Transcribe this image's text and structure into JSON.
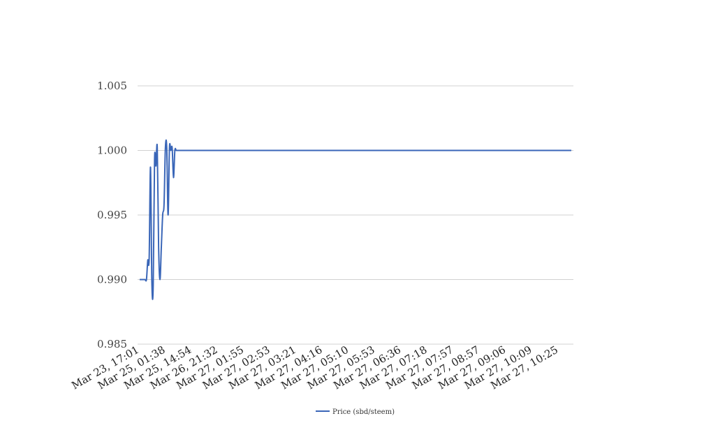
{
  "chart_data": {
    "type": "line",
    "title": "",
    "xlabel": "",
    "ylabel": "",
    "ylim": [
      0.985,
      1.005
    ],
    "yticks": [
      "0.985",
      "0.990",
      "0.995",
      "1.000",
      "1.005"
    ],
    "grid": true,
    "legend_position": "bottom",
    "x_tick_labels": [
      "Mar 23, 17:01",
      "Mar 25, 01:38",
      "Mar 25, 14:54",
      "Mar 26, 21:32",
      "Mar 27, 01:55",
      "Mar 27, 02:53",
      "Mar 27, 03:21",
      "Mar 27, 04:16",
      "Mar 27, 05:10",
      "Mar 27, 05:53",
      "Mar 27, 06:36",
      "Mar 27, 07:18",
      "Mar 27, 07:57",
      "Mar 27, 08:57",
      "Mar 27, 09:06",
      "Mar 27, 10:09",
      "Mar 27, 10:25"
    ],
    "series": [
      {
        "name": "Price (sbd/steem)",
        "color": "#3a66b8",
        "values": [
          0.99,
          0.99,
          0.99,
          0.99,
          0.99,
          0.99,
          0.9915,
          0.9916,
          0.9987,
          0.9898,
          0.9895,
          0.9993,
          0.9988,
          1.0002,
          0.9925,
          0.99,
          0.9925,
          0.995,
          0.9958,
          1.0002,
          1.0002,
          0.995,
          1.0002,
          1.0,
          1.0002,
          0.9979,
          1.0,
          1.0,
          1.0,
          1.0,
          1.0,
          1.0,
          1.0,
          1.0,
          1.0,
          1.0,
          1.0,
          1.0,
          1.0,
          1.0,
          1.0,
          1.0,
          1.0,
          1.0,
          1.0,
          1.0,
          1.0,
          1.0,
          1.0,
          1.0,
          1.0,
          1.0,
          1.0,
          1.0,
          1.0,
          1.0,
          1.0,
          1.0,
          1.0,
          1.0,
          1.0,
          1.0,
          1.0,
          1.0,
          1.0,
          1.0,
          1.0,
          1.0,
          1.0,
          1.0,
          1.0,
          1.0,
          1.0,
          1.0,
          1.0,
          1.0,
          1.0,
          1.0,
          1.0,
          1.0,
          1.0,
          1.0,
          1.0,
          1.0,
          1.0,
          1.0,
          1.0,
          1.0,
          1.0,
          1.0,
          1.0,
          1.0,
          1.0,
          1.0,
          1.0,
          1.0,
          1.0,
          1.0,
          1.0,
          1.0,
          1.0,
          1.0,
          1.0,
          1.0,
          1.0,
          1.0,
          1.0,
          1.0,
          1.0,
          1.0,
          1.0,
          1.0,
          1.0,
          1.0,
          1.0,
          1.0,
          1.0,
          1.0,
          1.0,
          1.0,
          1.0,
          1.0,
          1.0,
          1.0,
          1.0,
          1.0,
          1.0,
          1.0,
          1.0,
          1.0,
          1.0,
          1.0,
          1.0,
          1.0,
          1.0,
          1.0,
          1.0,
          1.0,
          1.0,
          1.0,
          1.0,
          1.0,
          1.0,
          1.0,
          1.0,
          1.0,
          1.0,
          1.0,
          1.0,
          1.0,
          1.0,
          1.0,
          1.0,
          1.0,
          1.0,
          1.0,
          1.0,
          1.0,
          1.0,
          1.0,
          1.0,
          1.0,
          1.0,
          1.0,
          1.0,
          1.0,
          1.0,
          1.0,
          1.0,
          1.0,
          1.0,
          1.0,
          1.0,
          1.0,
          1.0,
          1.0,
          1.0,
          1.0,
          1.0,
          1.0,
          1.0,
          1.0,
          1.0,
          1.0,
          1.0,
          1.0,
          1.0,
          1.0,
          1.0,
          1.0,
          1.0,
          1.0,
          1.0,
          1.0,
          1.0,
          1.0,
          1.0,
          1.0,
          1.0,
          1.0,
          1.0,
          1.0,
          1.0,
          1.0,
          1.0,
          1.0,
          1.0,
          1.0,
          1.0,
          1.0,
          1.0,
          1.0,
          1.0,
          1.0,
          1.0,
          1.0,
          1.0,
          1.0,
          1.0,
          1.0,
          1.0,
          1.0,
          1.0,
          1.0,
          1.0,
          1.0,
          1.0,
          1.0,
          1.0,
          1.0,
          1.0,
          1.0,
          1.0,
          1.0,
          1.0,
          1.0,
          1.0,
          1.0,
          1.0,
          1.0,
          1.0,
          1.0,
          1.0,
          1.0,
          1.0,
          1.0,
          1.0,
          1.0,
          1.0,
          1.0,
          1.0,
          1.0,
          1.0,
          1.0,
          1.0,
          1.0,
          1.0,
          1.0,
          1.0,
          1.0,
          1.0,
          1.0,
          1.0,
          1.0,
          1.0,
          1.0,
          1.0,
          1.0,
          1.0,
          1.0,
          1.0,
          1.0,
          1.0,
          1.0,
          1.0,
          1.0,
          1.0,
          1.0,
          1.0,
          1.0,
          1.0,
          1.0,
          1.0,
          1.0,
          1.0,
          1.0,
          1.0,
          1.0,
          1.0,
          1.0,
          1.0,
          1.0,
          1.0,
          1.0,
          1.0,
          1.0,
          1.0,
          1.0,
          1.0,
          1.0,
          1.0,
          1.0,
          1.0,
          1.0,
          1.0,
          1.0,
          1.0,
          1.0,
          1.0,
          1.0,
          1.0,
          1.0,
          1.0,
          1.0,
          1.0,
          1.0,
          1.0,
          1.0,
          1.0,
          1.0
        ]
      }
    ]
  }
}
